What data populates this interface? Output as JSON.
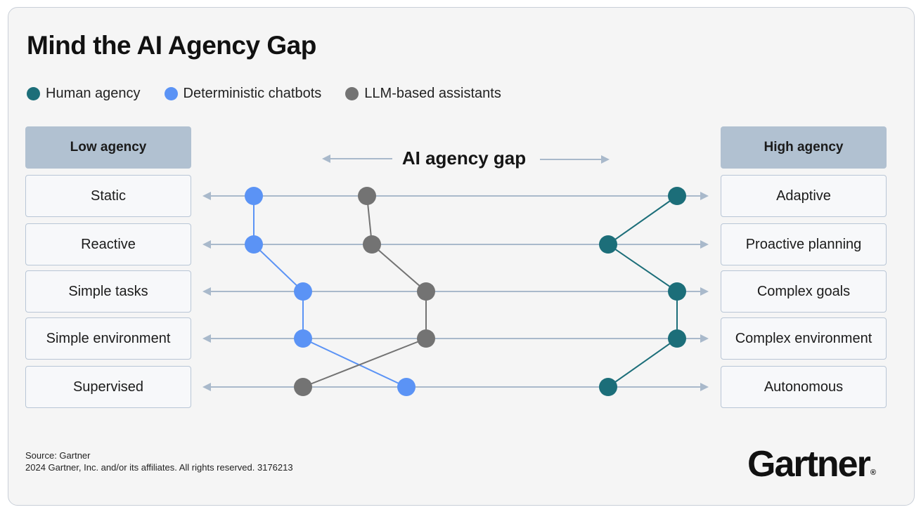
{
  "title": "Mind the AI Agency Gap",
  "legend": [
    {
      "label": "Human agency",
      "color": "#1c6e79",
      "icon": "dot-icon"
    },
    {
      "label": "Deterministic chatbots",
      "color": "#5b93f5",
      "icon": "dot-icon"
    },
    {
      "label": "LLM-based assistants",
      "color": "#737373",
      "icon": "dot-icon"
    }
  ],
  "low_header": "Low agency",
  "high_header": "High agency",
  "gap_label": "AI agency gap",
  "rows": [
    {
      "low": "Static",
      "high": "Adaptive"
    },
    {
      "low": "Reactive",
      "high": "Proactive planning"
    },
    {
      "low": "Simple tasks",
      "high": "Complex goals"
    },
    {
      "low": "Simple environment",
      "high": "Complex environment"
    },
    {
      "low": "Supervised",
      "high": "Autonomous"
    }
  ],
  "series": [
    {
      "name": "Human agency",
      "color": "#1c6e79",
      "levels": [
        0.95,
        0.81,
        0.95,
        0.95,
        0.81
      ]
    },
    {
      "name": "Deterministic chatbots",
      "color": "#5b93f5",
      "levels": [
        0.09,
        0.09,
        0.19,
        0.19,
        0.4
      ]
    },
    {
      "name": "LLM-based assistants",
      "color": "#737373",
      "levels": [
        0.32,
        0.33,
        0.44,
        0.44,
        0.19
      ]
    }
  ],
  "footer": {
    "source": "Source: Gartner",
    "copyright": "2024 Gartner, Inc. and/or its affiliates. All rights reserved. 3176213"
  },
  "logo": {
    "text": "Gartner",
    "mark": "®"
  },
  "colors": {
    "line": "#a9b9cb",
    "header_bg": "#b1c1d1"
  }
}
